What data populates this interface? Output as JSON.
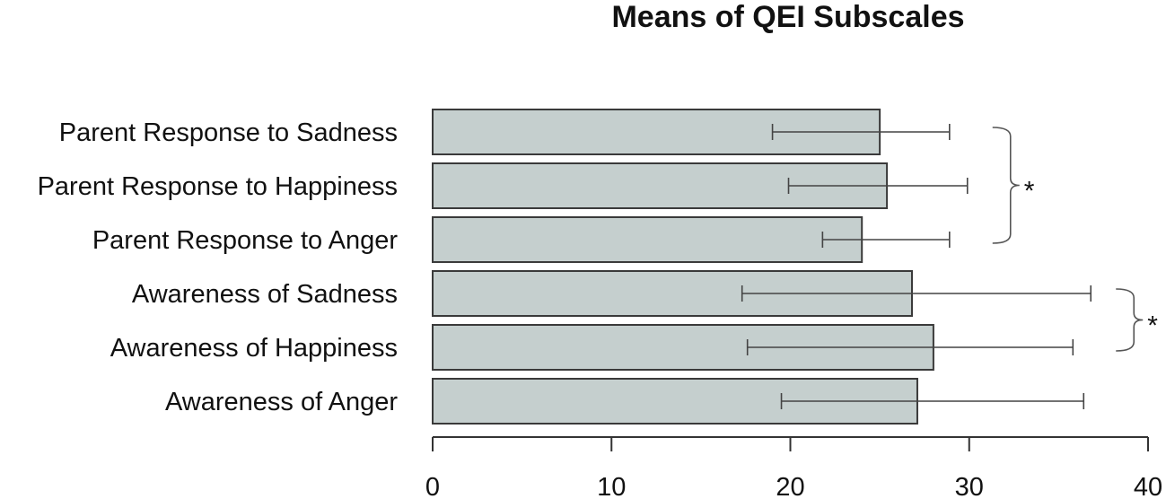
{
  "chart_data": {
    "type": "bar",
    "orientation": "horizontal",
    "title": "Means of QEI Subscales",
    "xlabel": "",
    "ylabel": "",
    "xlim": [
      0,
      40
    ],
    "xticks": [
      0,
      10,
      20,
      30,
      40
    ],
    "grid": false,
    "bar_color": "#c5cfce",
    "categories": [
      "Parent Response to Sadness",
      "Parent Response to Happiness",
      "Parent Response to Anger",
      "Awareness of Sadness",
      "Awareness of Happiness",
      "Awareness of Anger"
    ],
    "values": [
      25,
      25.4,
      24,
      26.8,
      28,
      27.1
    ],
    "error_low": [
      19,
      19.9,
      21.8,
      17.3,
      17.6,
      19.5
    ],
    "error_high": [
      28.9,
      29.9,
      28.9,
      36.8,
      35.8,
      36.4
    ],
    "significance": [
      {
        "categories": [
          "Parent Response to Sadness",
          "Parent Response to Happiness",
          "Parent Response to Anger"
        ],
        "label": "*"
      },
      {
        "categories": [
          "Awareness of Sadness",
          "Awareness of Happiness"
        ],
        "label": "*"
      }
    ]
  }
}
